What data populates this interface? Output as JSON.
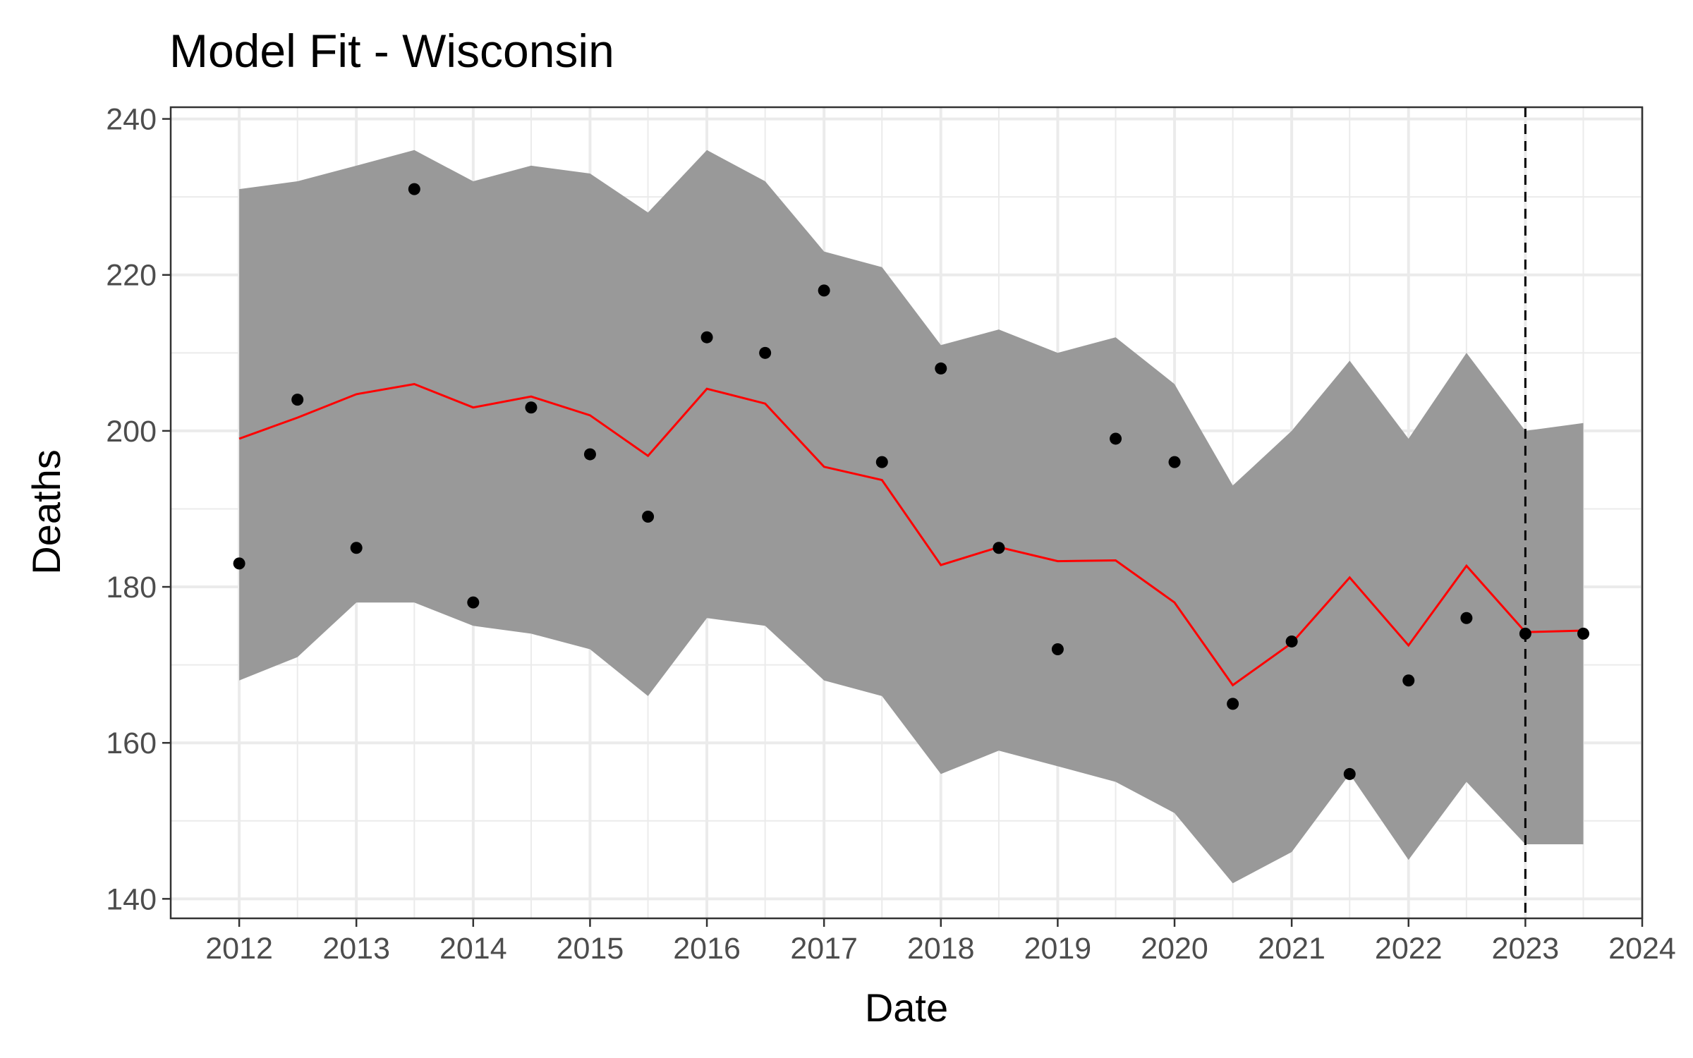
{
  "chart_data": {
    "type": "line",
    "title": "Model Fit - Wisconsin",
    "xlabel": "Date",
    "ylabel": "Deaths",
    "x_ticks": [
      "2012",
      "2013",
      "2014",
      "2015",
      "2016",
      "2017",
      "2018",
      "2019",
      "2020",
      "2021",
      "2022",
      "2023",
      "2024"
    ],
    "y_ticks": [
      140,
      160,
      180,
      200,
      220,
      240
    ],
    "xlim": [
      "2011-06-01",
      "2024-01-01"
    ],
    "ylim": [
      137.5,
      241.5
    ],
    "grid": true,
    "reference_line": {
      "x": "2023-01-01",
      "style": "dashed"
    },
    "dates": [
      "2012-01-01",
      "2012-07-01",
      "2013-01-01",
      "2013-07-01",
      "2014-01-01",
      "2014-07-01",
      "2015-01-01",
      "2015-07-01",
      "2016-01-01",
      "2016-07-01",
      "2017-01-01",
      "2017-07-01",
      "2018-01-01",
      "2018-07-01",
      "2019-01-01",
      "2019-07-01",
      "2020-01-01",
      "2020-07-01",
      "2021-01-01",
      "2021-07-01",
      "2022-01-01",
      "2022-07-01",
      "2023-01-01",
      "2023-07-01"
    ],
    "series": [
      {
        "kind": "points",
        "values": [
          183,
          204,
          185,
          231,
          178,
          203,
          197,
          189,
          212,
          210,
          218,
          196,
          208,
          185,
          172,
          199,
          196,
          165,
          173,
          156,
          168,
          176,
          174,
          174
        ]
      },
      {
        "kind": "line",
        "color": "#ff0000",
        "values": [
          199,
          201.7,
          204.7,
          206,
          203,
          204.4,
          202,
          196.8,
          205.4,
          203.5,
          195.4,
          193.7,
          182.8,
          185.1,
          183.3,
          183.4,
          178,
          167.4,
          172.8,
          181.2,
          172.5,
          182.7,
          174.2,
          174.4
        ]
      },
      {
        "kind": "band",
        "color": "#999999",
        "upper": [
          231,
          232,
          234,
          236,
          232,
          234,
          233,
          228,
          236,
          232,
          223,
          221,
          211,
          213,
          210,
          212,
          206,
          193,
          200,
          209,
          199,
          210,
          200,
          201
        ],
        "lower": [
          168,
          171,
          178,
          178,
          175,
          174,
          172,
          166,
          176,
          175,
          168,
          166,
          156,
          159,
          157,
          155,
          151,
          142,
          146,
          156,
          145,
          155,
          147,
          147
        ]
      }
    ]
  }
}
